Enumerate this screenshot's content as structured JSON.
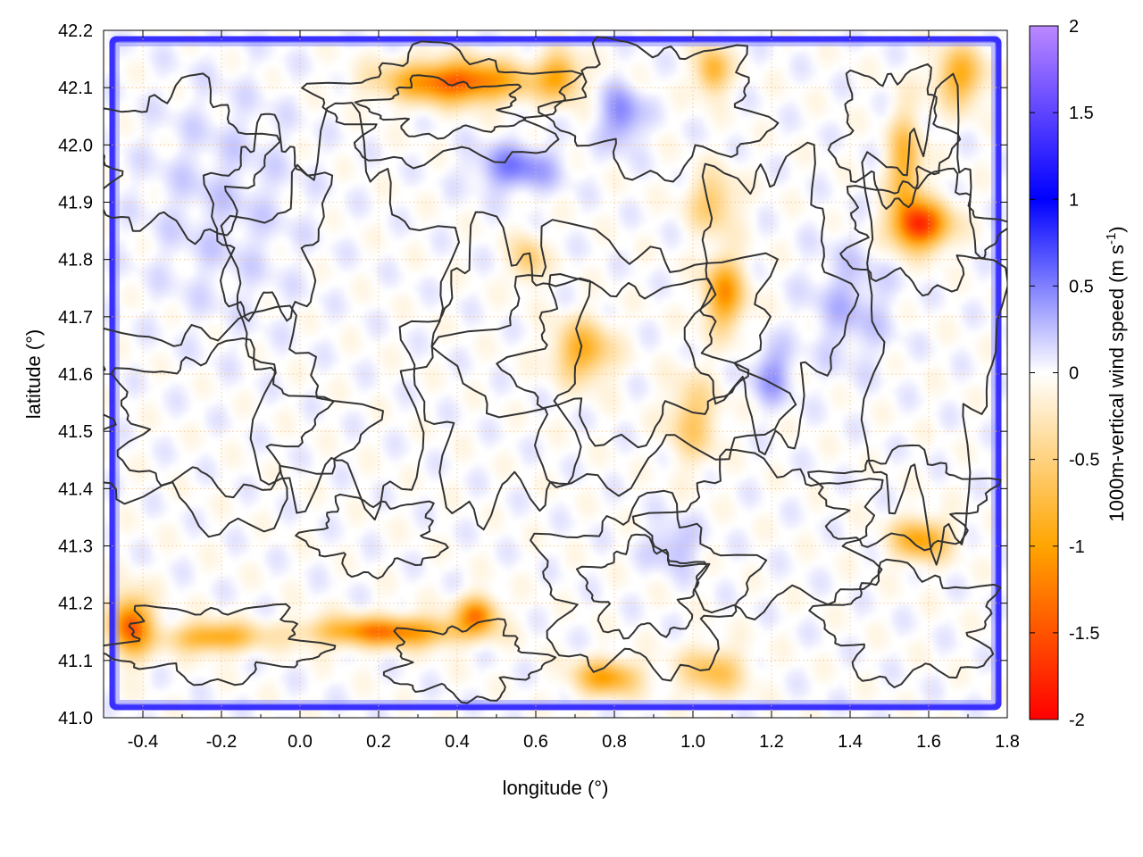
{
  "chart_data": {
    "type": "heatmap",
    "xlabel": "longitude (°)",
    "ylabel": "latitude (°)",
    "colorbar_label_main": "1000m-vertical wind speed (m s",
    "colorbar_label_sup": "-1",
    "colorbar_label_end": ")",
    "xlim": [
      -0.5,
      1.8
    ],
    "ylim": [
      41.0,
      42.2
    ],
    "clim": [
      -2,
      2
    ],
    "x_ticks": [
      {
        "value": -0.4,
        "label": "-0.4"
      },
      {
        "value": -0.2,
        "label": "-0.2"
      },
      {
        "value": 0.0,
        "label": "0.0"
      },
      {
        "value": 0.2,
        "label": "0.2"
      },
      {
        "value": 0.4,
        "label": "0.4"
      },
      {
        "value": 0.6,
        "label": "0.6"
      },
      {
        "value": 0.8,
        "label": "0.8"
      },
      {
        "value": 1.0,
        "label": "1.0"
      },
      {
        "value": 1.2,
        "label": "1.2"
      },
      {
        "value": 1.4,
        "label": "1.4"
      },
      {
        "value": 1.6,
        "label": "1.6"
      },
      {
        "value": 1.8,
        "label": "1.8"
      }
    ],
    "y_ticks": [
      {
        "value": 41.0,
        "label": "41.0"
      },
      {
        "value": 41.1,
        "label": "41.1"
      },
      {
        "value": 41.2,
        "label": "41.2"
      },
      {
        "value": 41.3,
        "label": "41.3"
      },
      {
        "value": 41.4,
        "label": "41.4"
      },
      {
        "value": 41.5,
        "label": "41.5"
      },
      {
        "value": 41.6,
        "label": "41.6"
      },
      {
        "value": 41.7,
        "label": "41.7"
      },
      {
        "value": 41.8,
        "label": "41.8"
      },
      {
        "value": 41.9,
        "label": "41.9"
      },
      {
        "value": 42.0,
        "label": "42.0"
      },
      {
        "value": 42.1,
        "label": "42.1"
      },
      {
        "value": 42.2,
        "label": "42.2"
      }
    ],
    "colorbar_ticks": [
      {
        "value": 2,
        "label": "2"
      },
      {
        "value": 1.5,
        "label": "1.5"
      },
      {
        "value": 1,
        "label": "1"
      },
      {
        "value": 0.5,
        "label": "0.5"
      },
      {
        "value": 0,
        "label": "0"
      },
      {
        "value": -0.5,
        "label": "-0.5"
      },
      {
        "value": -1,
        "label": "-1"
      },
      {
        "value": -1.5,
        "label": "-1.5"
      },
      {
        "value": -2,
        "label": "-2"
      }
    ],
    "colormap": [
      {
        "value": -2,
        "color": "#ff0000"
      },
      {
        "value": -1,
        "color": "#ffa500"
      },
      {
        "value": 0,
        "color": "#ffffff"
      },
      {
        "value": 1,
        "color": "#0000ff"
      },
      {
        "value": 2,
        "color": "#bb88ff"
      }
    ],
    "grid": true,
    "grid_color": "#f0c080",
    "contour_color": "#333333",
    "frame_value": 1.2,
    "features": [
      {
        "lon": 0.4,
        "lat": 42.11,
        "w": -1.5,
        "rx": 0.17,
        "ry": 0.035
      },
      {
        "lon": 0.66,
        "lat": 42.12,
        "w": -0.9,
        "rx": 0.05,
        "ry": 0.04
      },
      {
        "lon": 1.05,
        "lat": 42.13,
        "w": -0.9,
        "rx": 0.04,
        "ry": 0.04
      },
      {
        "lon": 1.68,
        "lat": 42.12,
        "w": -0.9,
        "rx": 0.06,
        "ry": 0.05
      },
      {
        "lon": 1.54,
        "lat": 41.96,
        "w": -0.9,
        "rx": 0.04,
        "ry": 0.09
      },
      {
        "lon": 1.58,
        "lat": 41.86,
        "w": -1.7,
        "rx": 0.07,
        "ry": 0.04
      },
      {
        "lon": 1.08,
        "lat": 41.74,
        "w": -1.1,
        "rx": 0.05,
        "ry": 0.06
      },
      {
        "lon": 1.05,
        "lat": 41.9,
        "w": -0.6,
        "rx": 0.06,
        "ry": 0.05
      },
      {
        "lon": 0.72,
        "lat": 41.64,
        "w": -0.9,
        "rx": 0.07,
        "ry": 0.05
      },
      {
        "lon": 1.0,
        "lat": 41.52,
        "w": -0.6,
        "rx": 0.06,
        "ry": 0.07
      },
      {
        "lon": 1.58,
        "lat": 41.31,
        "w": -1.0,
        "rx": 0.07,
        "ry": 0.035
      },
      {
        "lon": -0.43,
        "lat": 41.16,
        "w": -1.5,
        "rx": 0.05,
        "ry": 0.05
      },
      {
        "lon": -0.22,
        "lat": 41.14,
        "w": -1.0,
        "rx": 0.11,
        "ry": 0.025
      },
      {
        "lon": 0.22,
        "lat": 41.15,
        "w": -1.3,
        "rx": 0.19,
        "ry": 0.025
      },
      {
        "lon": 0.45,
        "lat": 41.18,
        "w": -1.2,
        "rx": 0.05,
        "ry": 0.03
      },
      {
        "lon": 0.78,
        "lat": 41.07,
        "w": -1.0,
        "rx": 0.08,
        "ry": 0.03
      },
      {
        "lon": 1.05,
        "lat": 41.08,
        "w": -0.7,
        "rx": 0.08,
        "ry": 0.04
      },
      {
        "lon": 0.58,
        "lat": 41.8,
        "w": -0.6,
        "rx": 0.04,
        "ry": 0.04
      },
      {
        "lon": 0.55,
        "lat": 41.96,
        "w": 0.5,
        "rx": 0.1,
        "ry": 0.04
      },
      {
        "lon": 0.82,
        "lat": 42.05,
        "w": 0.5,
        "rx": 0.05,
        "ry": 0.05
      },
      {
        "lon": 1.2,
        "lat": 41.6,
        "w": 0.4,
        "rx": 0.05,
        "ry": 0.05
      },
      {
        "lon": 0.95,
        "lat": 41.3,
        "w": 0.3,
        "rx": 0.06,
        "ry": 0.04
      },
      {
        "lon": -0.2,
        "lat": 41.9,
        "w": 0.15,
        "rx": 0.2,
        "ry": 0.2
      },
      {
        "lon": 1.4,
        "lat": 41.72,
        "w": 0.25,
        "rx": 0.1,
        "ry": 0.1
      }
    ]
  }
}
